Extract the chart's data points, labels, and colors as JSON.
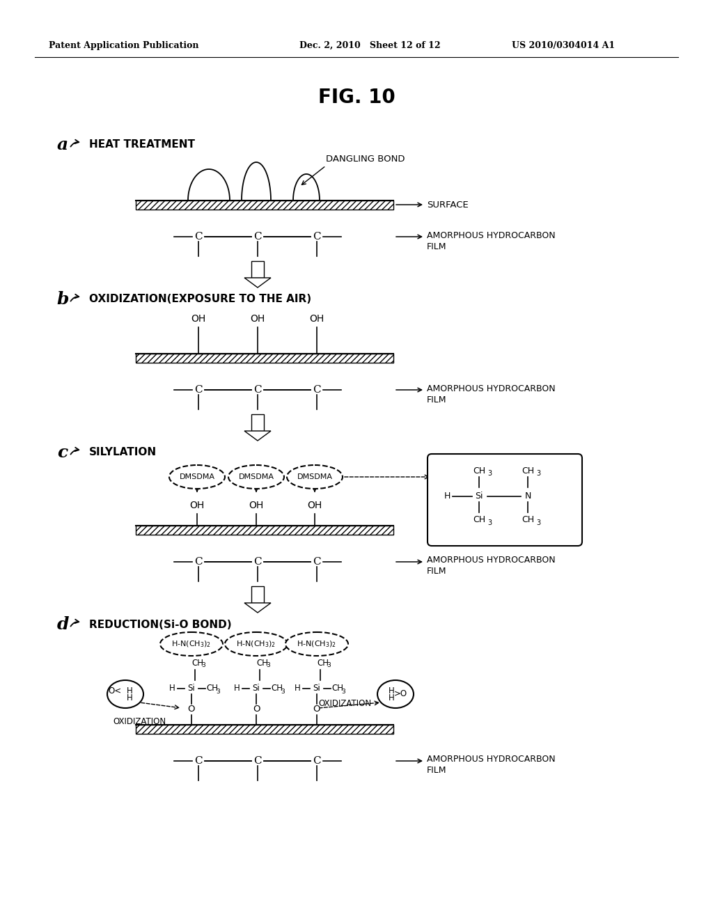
{
  "header_left": "Patent Application Publication",
  "header_mid": "Dec. 2, 2010   Sheet 12 of 12",
  "header_right": "US 2010/0304014 A1",
  "fig_title": "FIG. 10",
  "section_a_label": "a",
  "section_a_title": "HEAT TREATMENT",
  "section_b_label": "b",
  "section_b_title": "OXIDIZATION(EXPOSURE TO THE AIR)",
  "section_c_label": "c",
  "section_c_title": "SILYLATION",
  "section_d_label": "d",
  "section_d_title": "REDUCTION(Si-O BOND)",
  "bg_color": "#ffffff"
}
